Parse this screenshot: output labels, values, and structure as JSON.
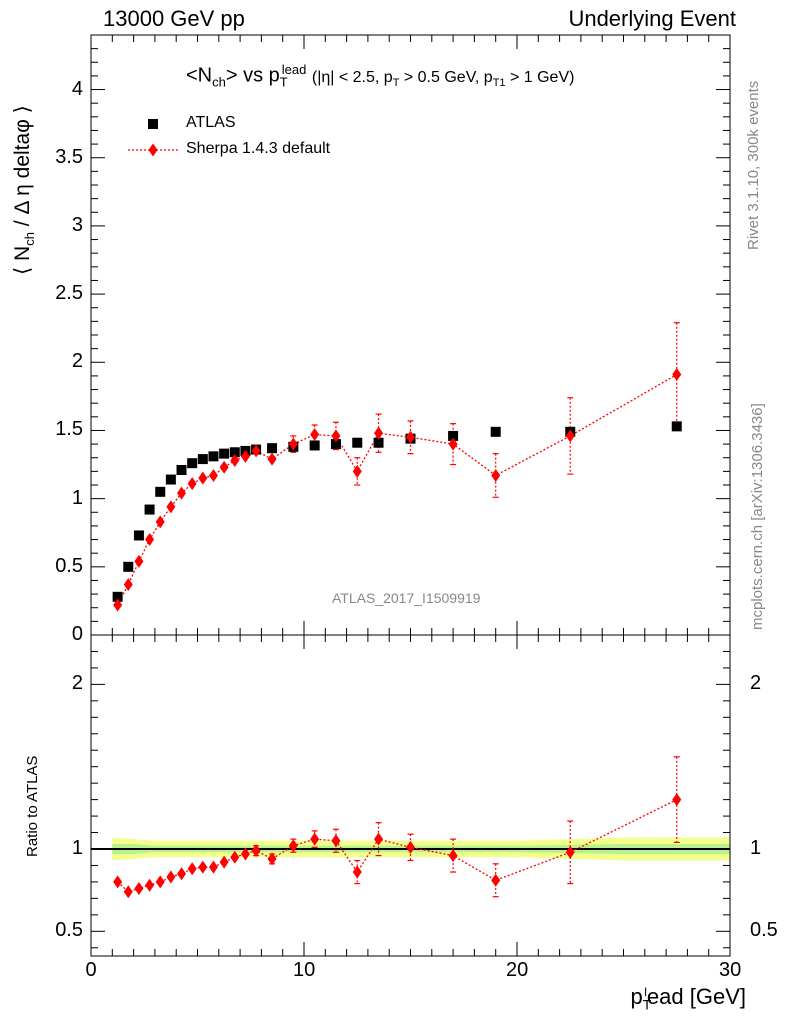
{
  "header": {
    "left": "13000 GeV pp",
    "right": "Underlying Event"
  },
  "side_labels": {
    "rivet": "Rivet 3.1.10,  300k events",
    "mcplots": "mcplots.cern.ch [arXiv:1306.3436]"
  },
  "chart_data": [
    {
      "type": "scatter",
      "title": "<N_ch> vs p_T^lead (|η| < 2.5, p_T > 0.5 GeV, p_T1 > 1 GeV)",
      "ylabel": "⟨ N_ch / Δ η deltaφ ⟩",
      "watermark": "ATLAS_2017_I1509919",
      "xlim": [
        0,
        30
      ],
      "ylim": [
        0,
        4.4
      ],
      "yticks": [
        "0",
        "0.5",
        "1",
        "1.5",
        "2",
        "2.5",
        "3",
        "3.5",
        "4"
      ],
      "legend_position": "top-left",
      "series": [
        {
          "name": "ATLAS",
          "color": "#000000",
          "marker": "square",
          "x": [
            1.25,
            1.75,
            2.25,
            2.75,
            3.25,
            3.75,
            4.25,
            4.75,
            5.25,
            5.75,
            6.25,
            6.75,
            7.25,
            7.75,
            8.5,
            9.5,
            10.5,
            11.5,
            12.5,
            13.5,
            15,
            17,
            19,
            22.5,
            27.5
          ],
          "y": [
            0.28,
            0.5,
            0.73,
            0.92,
            1.05,
            1.14,
            1.21,
            1.26,
            1.29,
            1.31,
            1.33,
            1.34,
            1.35,
            1.36,
            1.37,
            1.38,
            1.39,
            1.4,
            1.41,
            1.41,
            1.44,
            1.46,
            1.49,
            1.49,
            1.53
          ]
        },
        {
          "name": "Sherpa 1.4.3 default",
          "color": "#ff0000",
          "marker": "diamond",
          "x": [
            1.25,
            1.75,
            2.25,
            2.75,
            3.25,
            3.75,
            4.25,
            4.75,
            5.25,
            5.75,
            6.25,
            6.75,
            7.25,
            7.75,
            8.5,
            9.5,
            10.5,
            11.5,
            12.5,
            13.5,
            15,
            17,
            19,
            22.5,
            27.5
          ],
          "y": [
            0.22,
            0.37,
            0.54,
            0.7,
            0.83,
            0.94,
            1.04,
            1.11,
            1.15,
            1.17,
            1.23,
            1.28,
            1.31,
            1.35,
            1.29,
            1.4,
            1.47,
            1.46,
            1.2,
            1.48,
            1.45,
            1.4,
            1.17,
            1.46,
            1.91
          ],
          "yerr": [
            0.02,
            0.02,
            0.02,
            0.02,
            0.02,
            0.02,
            0.02,
            0.02,
            0.02,
            0.03,
            0.03,
            0.03,
            0.03,
            0.04,
            0.04,
            0.06,
            0.07,
            0.1,
            0.1,
            0.14,
            0.12,
            0.15,
            0.16,
            0.28,
            0.38
          ]
        }
      ]
    },
    {
      "type": "scatter",
      "ylabel": "Ratio to ATLAS",
      "xlabel": "p_T^lead [GeV]",
      "xlim": [
        0,
        30
      ],
      "ylim": [
        0.35,
        2.3
      ],
      "xticks": [
        "0",
        "10",
        "20",
        "30"
      ],
      "yticks": [
        "0.5",
        "1",
        "2"
      ],
      "band": {
        "x": [
          1,
          2,
          3,
          4,
          5,
          6,
          7,
          8,
          9,
          10,
          11,
          12,
          13,
          14,
          16,
          18,
          20,
          25,
          30
        ],
        "yellow_halfwidth": [
          0.07,
          0.06,
          0.05,
          0.05,
          0.05,
          0.05,
          0.05,
          0.05,
          0.05,
          0.05,
          0.05,
          0.05,
          0.05,
          0.05,
          0.05,
          0.05,
          0.05,
          0.07,
          0.07
        ],
        "green_halfwidth": [
          0.03,
          0.03,
          0.02,
          0.02,
          0.02,
          0.02,
          0.02,
          0.02,
          0.02,
          0.02,
          0.02,
          0.02,
          0.02,
          0.02,
          0.02,
          0.02,
          0.02,
          0.03,
          0.03
        ]
      },
      "series": [
        {
          "name": "Sherpa 1.4.3 default",
          "color": "#ff0000",
          "x": [
            1.25,
            1.75,
            2.25,
            2.75,
            3.25,
            3.75,
            4.25,
            4.75,
            5.25,
            5.75,
            6.25,
            6.75,
            7.25,
            7.75,
            8.5,
            9.5,
            10.5,
            11.5,
            12.5,
            13.5,
            15,
            17,
            19,
            22.5,
            27.5
          ],
          "y": [
            0.8,
            0.74,
            0.76,
            0.78,
            0.8,
            0.83,
            0.85,
            0.88,
            0.89,
            0.89,
            0.92,
            0.95,
            0.97,
            0.99,
            0.94,
            1.02,
            1.06,
            1.05,
            0.86,
            1.06,
            1.01,
            0.96,
            0.81,
            0.98,
            1.3
          ],
          "yerr": [
            0.02,
            0.02,
            0.02,
            0.02,
            0.02,
            0.02,
            0.02,
            0.02,
            0.02,
            0.02,
            0.02,
            0.02,
            0.02,
            0.03,
            0.03,
            0.04,
            0.05,
            0.07,
            0.07,
            0.1,
            0.08,
            0.1,
            0.1,
            0.19,
            0.26
          ]
        }
      ]
    }
  ]
}
